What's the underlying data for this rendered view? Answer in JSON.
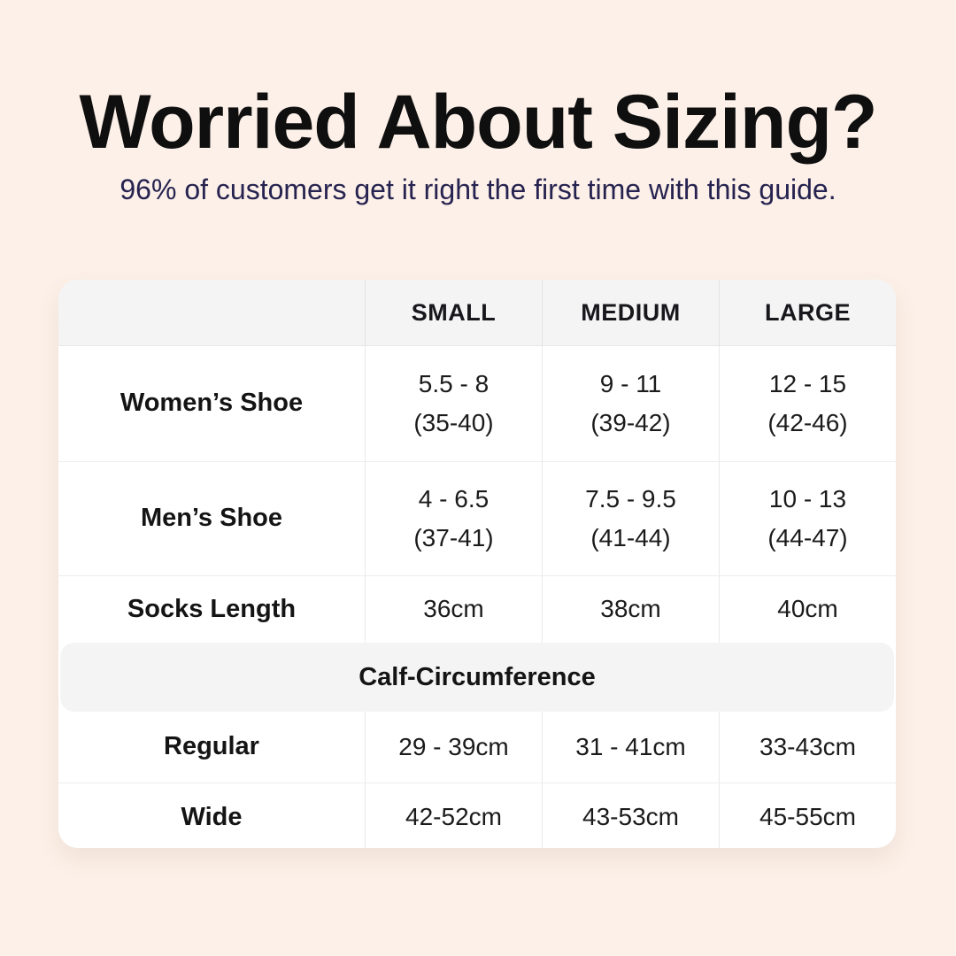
{
  "header": {
    "title": "Worried About Sizing?",
    "subtitle": "96% of customers get it right the first time with this guide."
  },
  "colors": {
    "background": "#fcf0e8",
    "card": "#ffffff",
    "header_band": "#f4f4f5",
    "title_text": "#0f0f0f",
    "subtitle_text": "#262350",
    "table_text": "#1b1b1b",
    "divider": "#e9e9eb"
  },
  "table": {
    "columns": [
      "",
      "SMALL",
      "MEDIUM",
      "LARGE"
    ],
    "rows": [
      {
        "label": "Women’s Shoe",
        "cells": [
          {
            "l1": "5.5 - 8",
            "l2": "(35-40)"
          },
          {
            "l1": "9 - 11",
            "l2": "(39-42)"
          },
          {
            "l1": "12 - 15",
            "l2": "(42-46)"
          }
        ]
      },
      {
        "label": "Men’s Shoe",
        "cells": [
          {
            "l1": "4 - 6.5",
            "l2": "(37-41)"
          },
          {
            "l1": "7.5 - 9.5",
            "l2": "(41-44)"
          },
          {
            "l1": "10 - 13",
            "l2": "(44-47)"
          }
        ]
      },
      {
        "label": "Socks Length",
        "cells": [
          {
            "l1": "36cm"
          },
          {
            "l1": "38cm"
          },
          {
            "l1": "40cm"
          }
        ]
      }
    ],
    "section_header": "Calf-Circumference",
    "section_rows": [
      {
        "label": "Regular",
        "cells": [
          {
            "l1": "29 - 39cm"
          },
          {
            "l1": "31 - 41cm"
          },
          {
            "l1": "33-43cm"
          }
        ]
      },
      {
        "label": "Wide",
        "cells": [
          {
            "l1": "42-52cm"
          },
          {
            "l1": "43-53cm"
          },
          {
            "l1": "45-55cm"
          }
        ]
      }
    ]
  },
  "chart_data": {
    "type": "table",
    "title": "Worried About Sizing?",
    "subtitle": "96% of customers get it right the first time with this guide.",
    "columns": [
      "",
      "SMALL",
      "MEDIUM",
      "LARGE"
    ],
    "rows": [
      [
        "Women’s Shoe",
        "5.5 - 8 (35-40)",
        "9 - 11 (39-42)",
        "12 - 15 (42-46)"
      ],
      [
        "Men’s Shoe",
        "4 - 6.5 (37-41)",
        "7.5 - 9.5 (41-44)",
        "10 - 13 (44-47)"
      ],
      [
        "Socks Length",
        "36cm",
        "38cm",
        "40cm"
      ],
      [
        "Calf-Circumference",
        "",
        "",
        ""
      ],
      [
        "Regular",
        "29 - 39cm",
        "31 - 41cm",
        "33-43cm"
      ],
      [
        "Wide",
        "42-52cm",
        "43-53cm",
        "45-55cm"
      ]
    ],
    "layout_hints": {
      "section_header_row_index": 3,
      "section_header_spans_all_columns": true,
      "grid": "light-gray dividers, gray header band, white card on peach background"
    }
  }
}
